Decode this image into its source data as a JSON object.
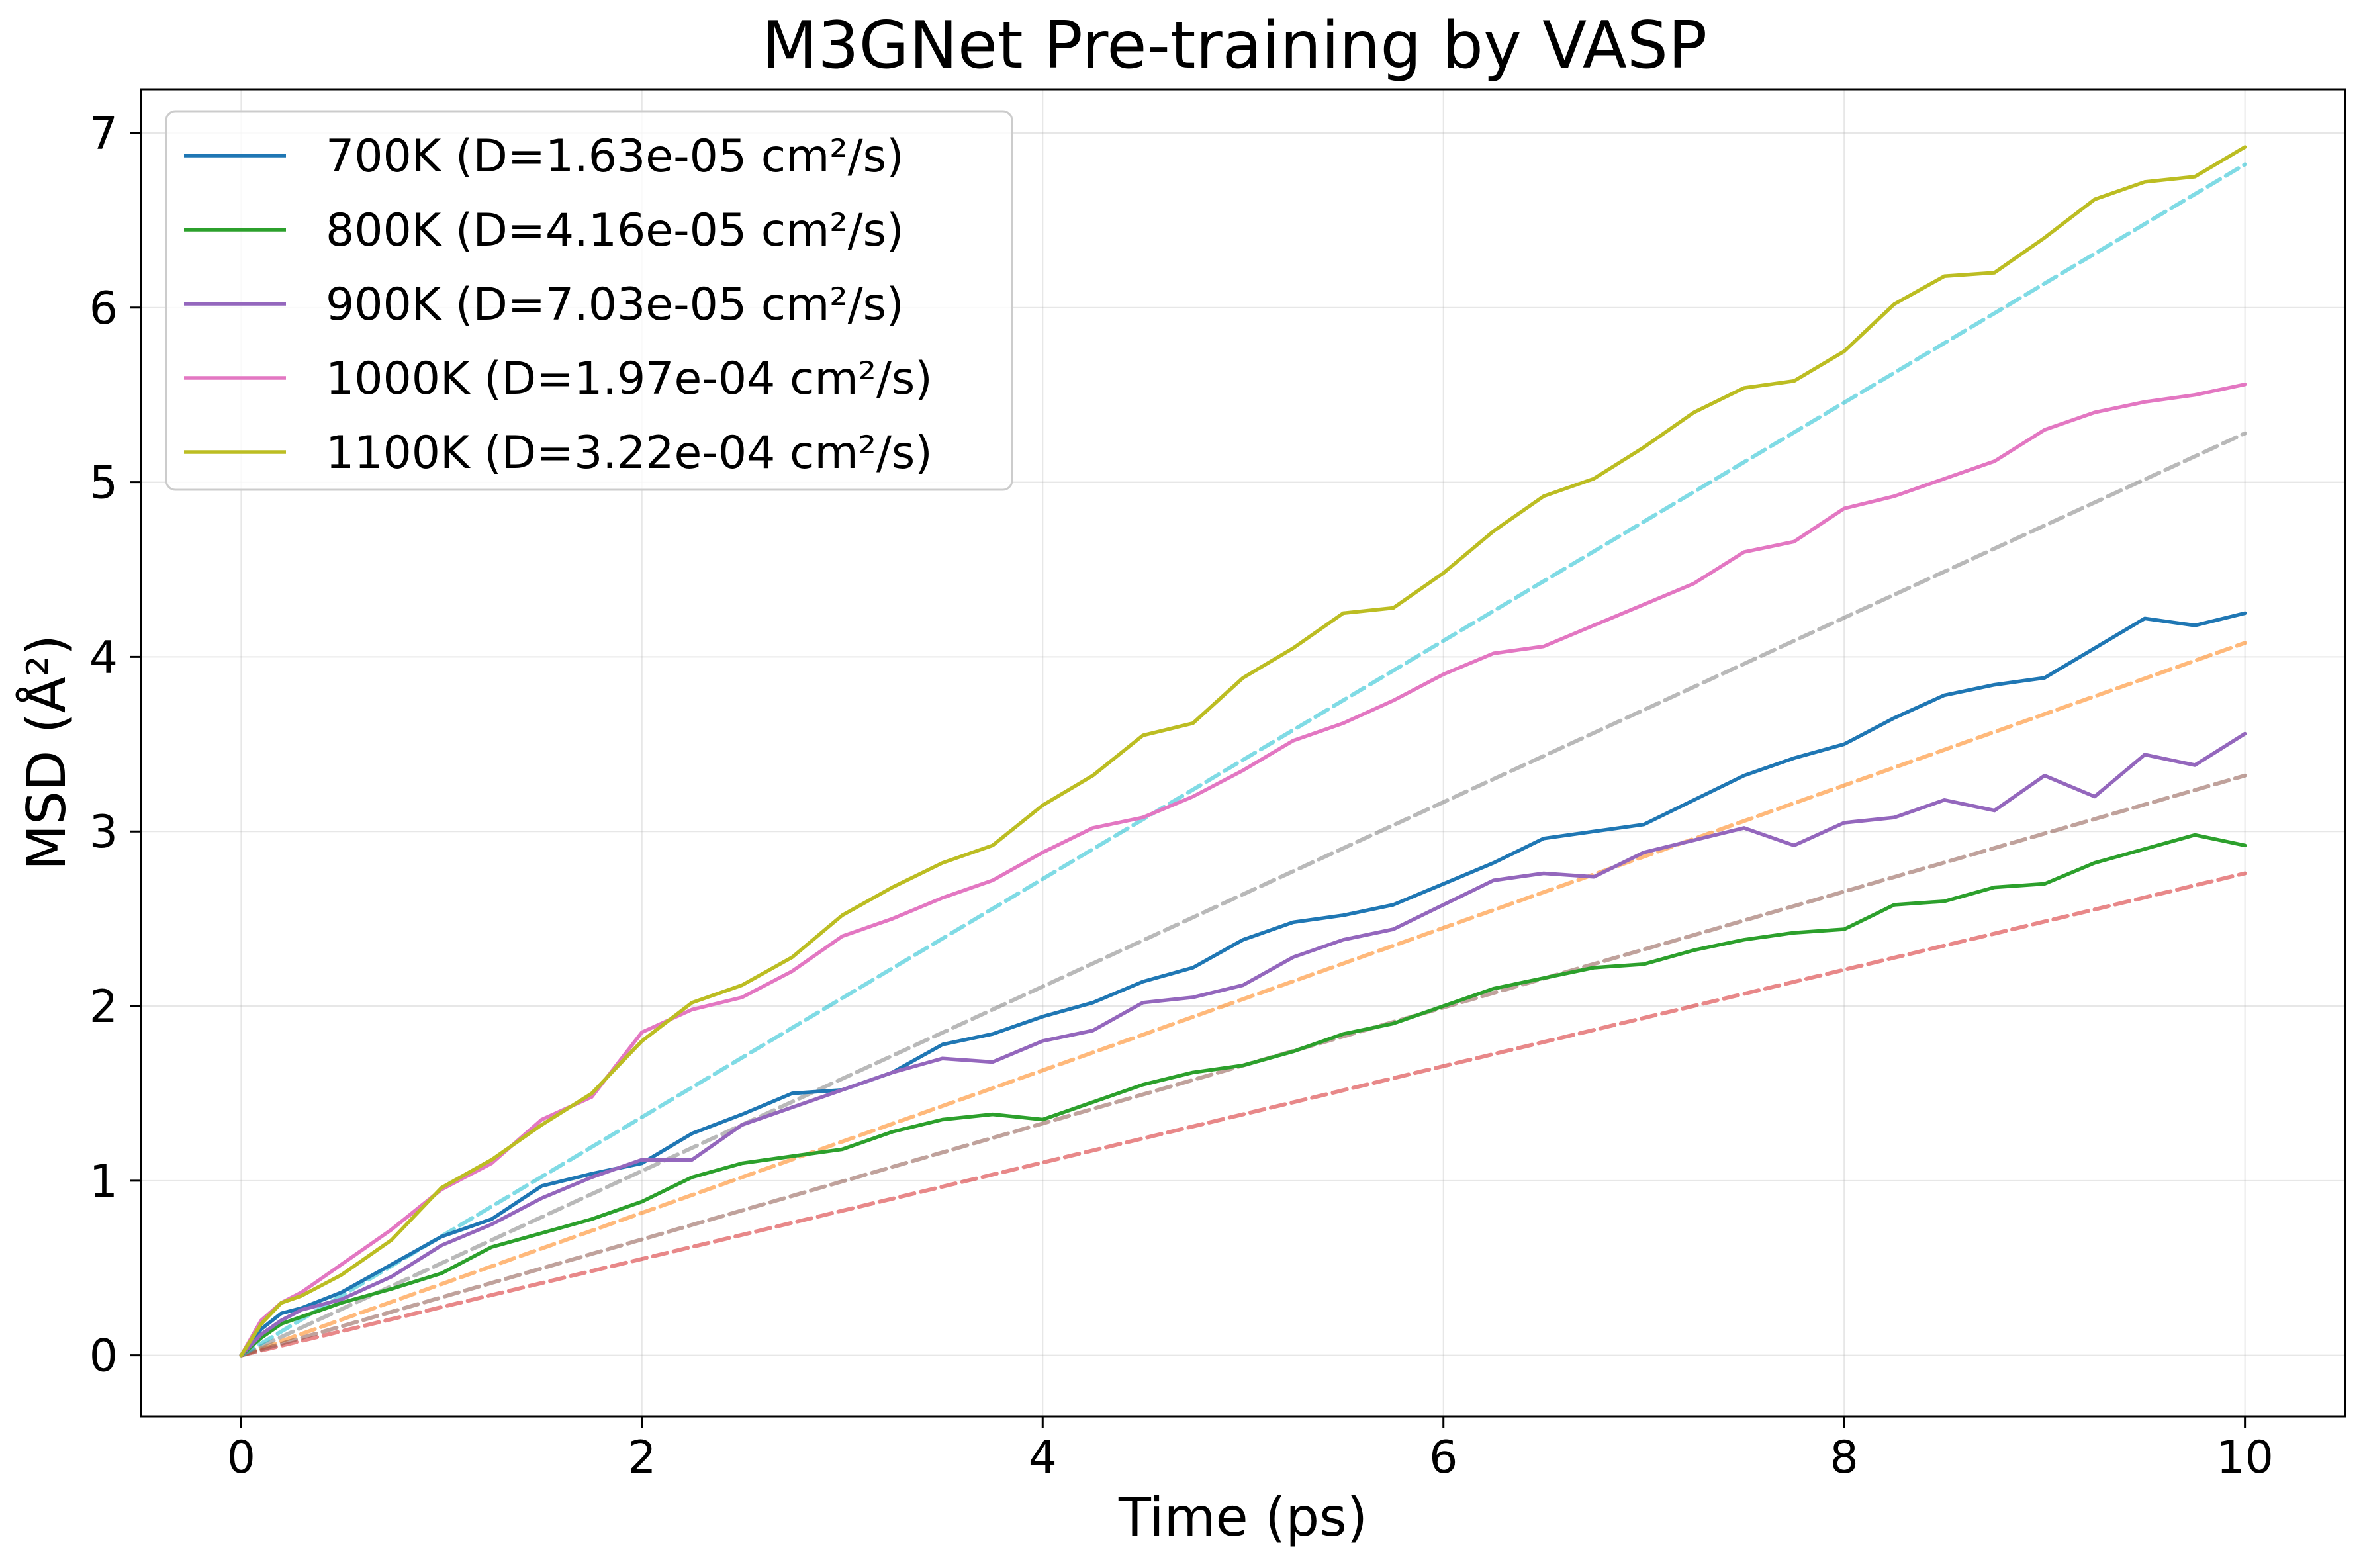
{
  "chart_data": {
    "type": "line",
    "title": "M3GNet Pre-training by VASP",
    "xlabel": "Time (ps)",
    "ylabel": "MSD (Å²)",
    "xlim": [
      -0.5,
      10.5
    ],
    "ylim": [
      -0.35,
      7.25
    ],
    "xticks": [
      0,
      2,
      4,
      6,
      8,
      10
    ],
    "yticks": [
      0,
      1,
      2,
      3,
      4,
      5,
      6,
      7
    ],
    "grid": true,
    "legend_position": "top-left",
    "series": [
      {
        "name": "700K (D=1.63e-05 cm²/s)",
        "color": "#1f77b4",
        "style": "solid",
        "x": [
          0,
          0.1,
          0.2,
          0.3,
          0.5,
          0.75,
          1.0,
          1.25,
          1.5,
          1.75,
          2.0,
          2.25,
          2.5,
          2.75,
          3.0,
          3.25,
          3.5,
          3.75,
          4.0,
          4.25,
          4.5,
          4.75,
          5.0,
          5.25,
          5.5,
          5.75,
          6.0,
          6.25,
          6.5,
          6.75,
          7.0,
          7.25,
          7.5,
          7.75,
          8.0,
          8.25,
          8.5,
          8.75,
          9.0,
          9.25,
          9.5,
          9.75,
          10.0
        ],
        "y": [
          0,
          0.15,
          0.24,
          0.27,
          0.36,
          0.52,
          0.68,
          0.78,
          0.97,
          1.04,
          1.1,
          1.27,
          1.38,
          1.5,
          1.52,
          1.62,
          1.78,
          1.84,
          1.94,
          2.02,
          2.14,
          2.22,
          2.38,
          2.48,
          2.52,
          2.58,
          2.7,
          2.82,
          2.96,
          3.0,
          3.04,
          3.18,
          3.32,
          3.42,
          3.5,
          3.65,
          3.78,
          3.84,
          3.88,
          4.05,
          4.22,
          4.18,
          4.25
        ]
      },
      {
        "name": "800K (D=4.16e-05 cm²/s)",
        "color": "#2ca02c",
        "style": "solid",
        "x": [
          0,
          0.1,
          0.2,
          0.3,
          0.5,
          0.75,
          1.0,
          1.25,
          1.5,
          1.75,
          2.0,
          2.25,
          2.5,
          2.75,
          3.0,
          3.25,
          3.5,
          3.75,
          4.0,
          4.25,
          4.5,
          4.75,
          5.0,
          5.25,
          5.5,
          5.75,
          6.0,
          6.25,
          6.5,
          6.75,
          7.0,
          7.25,
          7.5,
          7.75,
          8.0,
          8.25,
          8.5,
          8.75,
          9.0,
          9.25,
          9.5,
          9.75,
          10.0
        ],
        "y": [
          0,
          0.1,
          0.18,
          0.22,
          0.3,
          0.38,
          0.47,
          0.62,
          0.7,
          0.78,
          0.88,
          1.02,
          1.1,
          1.14,
          1.18,
          1.28,
          1.35,
          1.38,
          1.35,
          1.45,
          1.55,
          1.62,
          1.66,
          1.74,
          1.84,
          1.9,
          2.0,
          2.1,
          2.16,
          2.22,
          2.24,
          2.32,
          2.38,
          2.42,
          2.44,
          2.58,
          2.6,
          2.68,
          2.7,
          2.82,
          2.9,
          2.98,
          2.92
        ]
      },
      {
        "name": "900K (D=7.03e-05 cm²/s)",
        "color": "#9467bd",
        "style": "solid",
        "x": [
          0,
          0.1,
          0.2,
          0.3,
          0.5,
          0.75,
          1.0,
          1.25,
          1.5,
          1.75,
          2.0,
          2.25,
          2.5,
          2.75,
          3.0,
          3.25,
          3.5,
          3.75,
          4.0,
          4.25,
          4.5,
          4.75,
          5.0,
          5.25,
          5.5,
          5.75,
          6.0,
          6.25,
          6.5,
          6.75,
          7.0,
          7.25,
          7.5,
          7.75,
          8.0,
          8.25,
          8.5,
          8.75,
          9.0,
          9.25,
          9.5,
          9.75,
          10.0
        ],
        "y": [
          0,
          0.12,
          0.2,
          0.26,
          0.32,
          0.45,
          0.63,
          0.75,
          0.9,
          1.02,
          1.12,
          1.12,
          1.32,
          1.42,
          1.52,
          1.62,
          1.7,
          1.68,
          1.8,
          1.86,
          2.02,
          2.05,
          2.12,
          2.28,
          2.38,
          2.44,
          2.58,
          2.72,
          2.76,
          2.74,
          2.88,
          2.95,
          3.02,
          2.92,
          3.05,
          3.08,
          3.18,
          3.12,
          3.32,
          3.2,
          3.44,
          3.38,
          3.56
        ]
      },
      {
        "name": "1000K (D=1.97e-04 cm²/s)",
        "color": "#e377c2",
        "style": "solid",
        "x": [
          0,
          0.1,
          0.2,
          0.3,
          0.5,
          0.75,
          1.0,
          1.25,
          1.5,
          1.75,
          2.0,
          2.25,
          2.5,
          2.75,
          3.0,
          3.25,
          3.5,
          3.75,
          4.0,
          4.25,
          4.5,
          4.75,
          5.0,
          5.25,
          5.5,
          5.75,
          6.0,
          6.25,
          6.5,
          6.75,
          7.0,
          7.25,
          7.5,
          7.75,
          8.0,
          8.25,
          8.5,
          8.75,
          9.0,
          9.25,
          9.5,
          9.75,
          10.0
        ],
        "y": [
          0,
          0.2,
          0.3,
          0.36,
          0.52,
          0.72,
          0.95,
          1.1,
          1.35,
          1.48,
          1.85,
          1.98,
          2.05,
          2.2,
          2.4,
          2.5,
          2.62,
          2.72,
          2.88,
          3.02,
          3.08,
          3.2,
          3.35,
          3.52,
          3.62,
          3.75,
          3.9,
          4.02,
          4.06,
          4.18,
          4.3,
          4.42,
          4.6,
          4.66,
          4.85,
          4.92,
          5.02,
          5.12,
          5.3,
          5.4,
          5.46,
          5.5,
          5.56
        ]
      },
      {
        "name": "1100K (D=3.22e-04 cm²/s)",
        "color": "#bcbd22",
        "style": "solid",
        "x": [
          0,
          0.1,
          0.2,
          0.3,
          0.5,
          0.75,
          1.0,
          1.25,
          1.5,
          1.75,
          2.0,
          2.25,
          2.5,
          2.75,
          3.0,
          3.25,
          3.5,
          3.75,
          4.0,
          4.25,
          4.5,
          4.75,
          5.0,
          5.25,
          5.5,
          5.75,
          6.0,
          6.25,
          6.5,
          6.75,
          7.0,
          7.25,
          7.5,
          7.75,
          8.0,
          8.25,
          8.5,
          8.75,
          9.0,
          9.25,
          9.5,
          9.75,
          10.0
        ],
        "y": [
          0,
          0.18,
          0.3,
          0.34,
          0.46,
          0.66,
          0.96,
          1.12,
          1.32,
          1.5,
          1.8,
          2.02,
          2.12,
          2.28,
          2.52,
          2.68,
          2.82,
          2.92,
          3.15,
          3.32,
          3.55,
          3.62,
          3.88,
          4.05,
          4.25,
          4.28,
          4.48,
          4.72,
          4.92,
          5.02,
          5.2,
          5.4,
          5.54,
          5.58,
          5.75,
          6.02,
          6.18,
          6.2,
          6.4,
          6.62,
          6.72,
          6.75,
          6.92
        ]
      },
      {
        "color": "#ff7f0e",
        "style": "dashed",
        "x": [
          0,
          10
        ],
        "y": [
          0,
          4.08
        ]
      },
      {
        "color": "#d62728",
        "style": "dashed",
        "x": [
          0,
          10
        ],
        "y": [
          0,
          2.76
        ]
      },
      {
        "color": "#8c564b",
        "style": "dashed",
        "x": [
          0,
          10
        ],
        "y": [
          0,
          3.32
        ]
      },
      {
        "color": "#7f7f7f",
        "style": "dashed",
        "x": [
          0,
          10
        ],
        "y": [
          0,
          5.28
        ]
      },
      {
        "color": "#17becf",
        "style": "dashed",
        "x": [
          0,
          10
        ],
        "y": [
          0,
          6.82
        ]
      }
    ]
  }
}
